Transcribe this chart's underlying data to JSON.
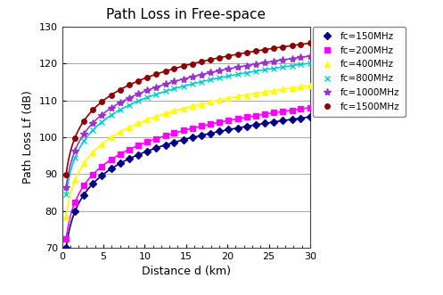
{
  "title": "Path Loss in Free-space",
  "xlabel": "Distance d (km)",
  "ylabel": "Path Loss Lf (dB)",
  "xlim": [
    0,
    30
  ],
  "ylim": [
    70,
    130
  ],
  "xticks": [
    0,
    5,
    10,
    15,
    20,
    25,
    30
  ],
  "yticks": [
    70,
    80,
    90,
    100,
    110,
    120,
    130
  ],
  "frequencies_MHz": [
    150,
    200,
    400,
    800,
    1000,
    1500
  ],
  "series_colors": [
    "#000080",
    "#FF00FF",
    "#FFFF00",
    "#00CCCC",
    "#9933CC",
    "#8B0000"
  ],
  "series_markers": [
    "D",
    "s",
    "^",
    "x",
    "*",
    "o"
  ],
  "series_labels": [
    "fc=150MHz",
    "fc=200MHz",
    "fc=400MHz",
    "fc=800MHz",
    "fc=1000MHz",
    "fc=1500MHz"
  ],
  "background_color": "#ffffff",
  "title_fontsize": 11,
  "label_fontsize": 9,
  "tick_fontsize": 8,
  "legend_fontsize": 7.5,
  "figsize": [
    4.97,
    3.31
  ],
  "dpi": 100
}
